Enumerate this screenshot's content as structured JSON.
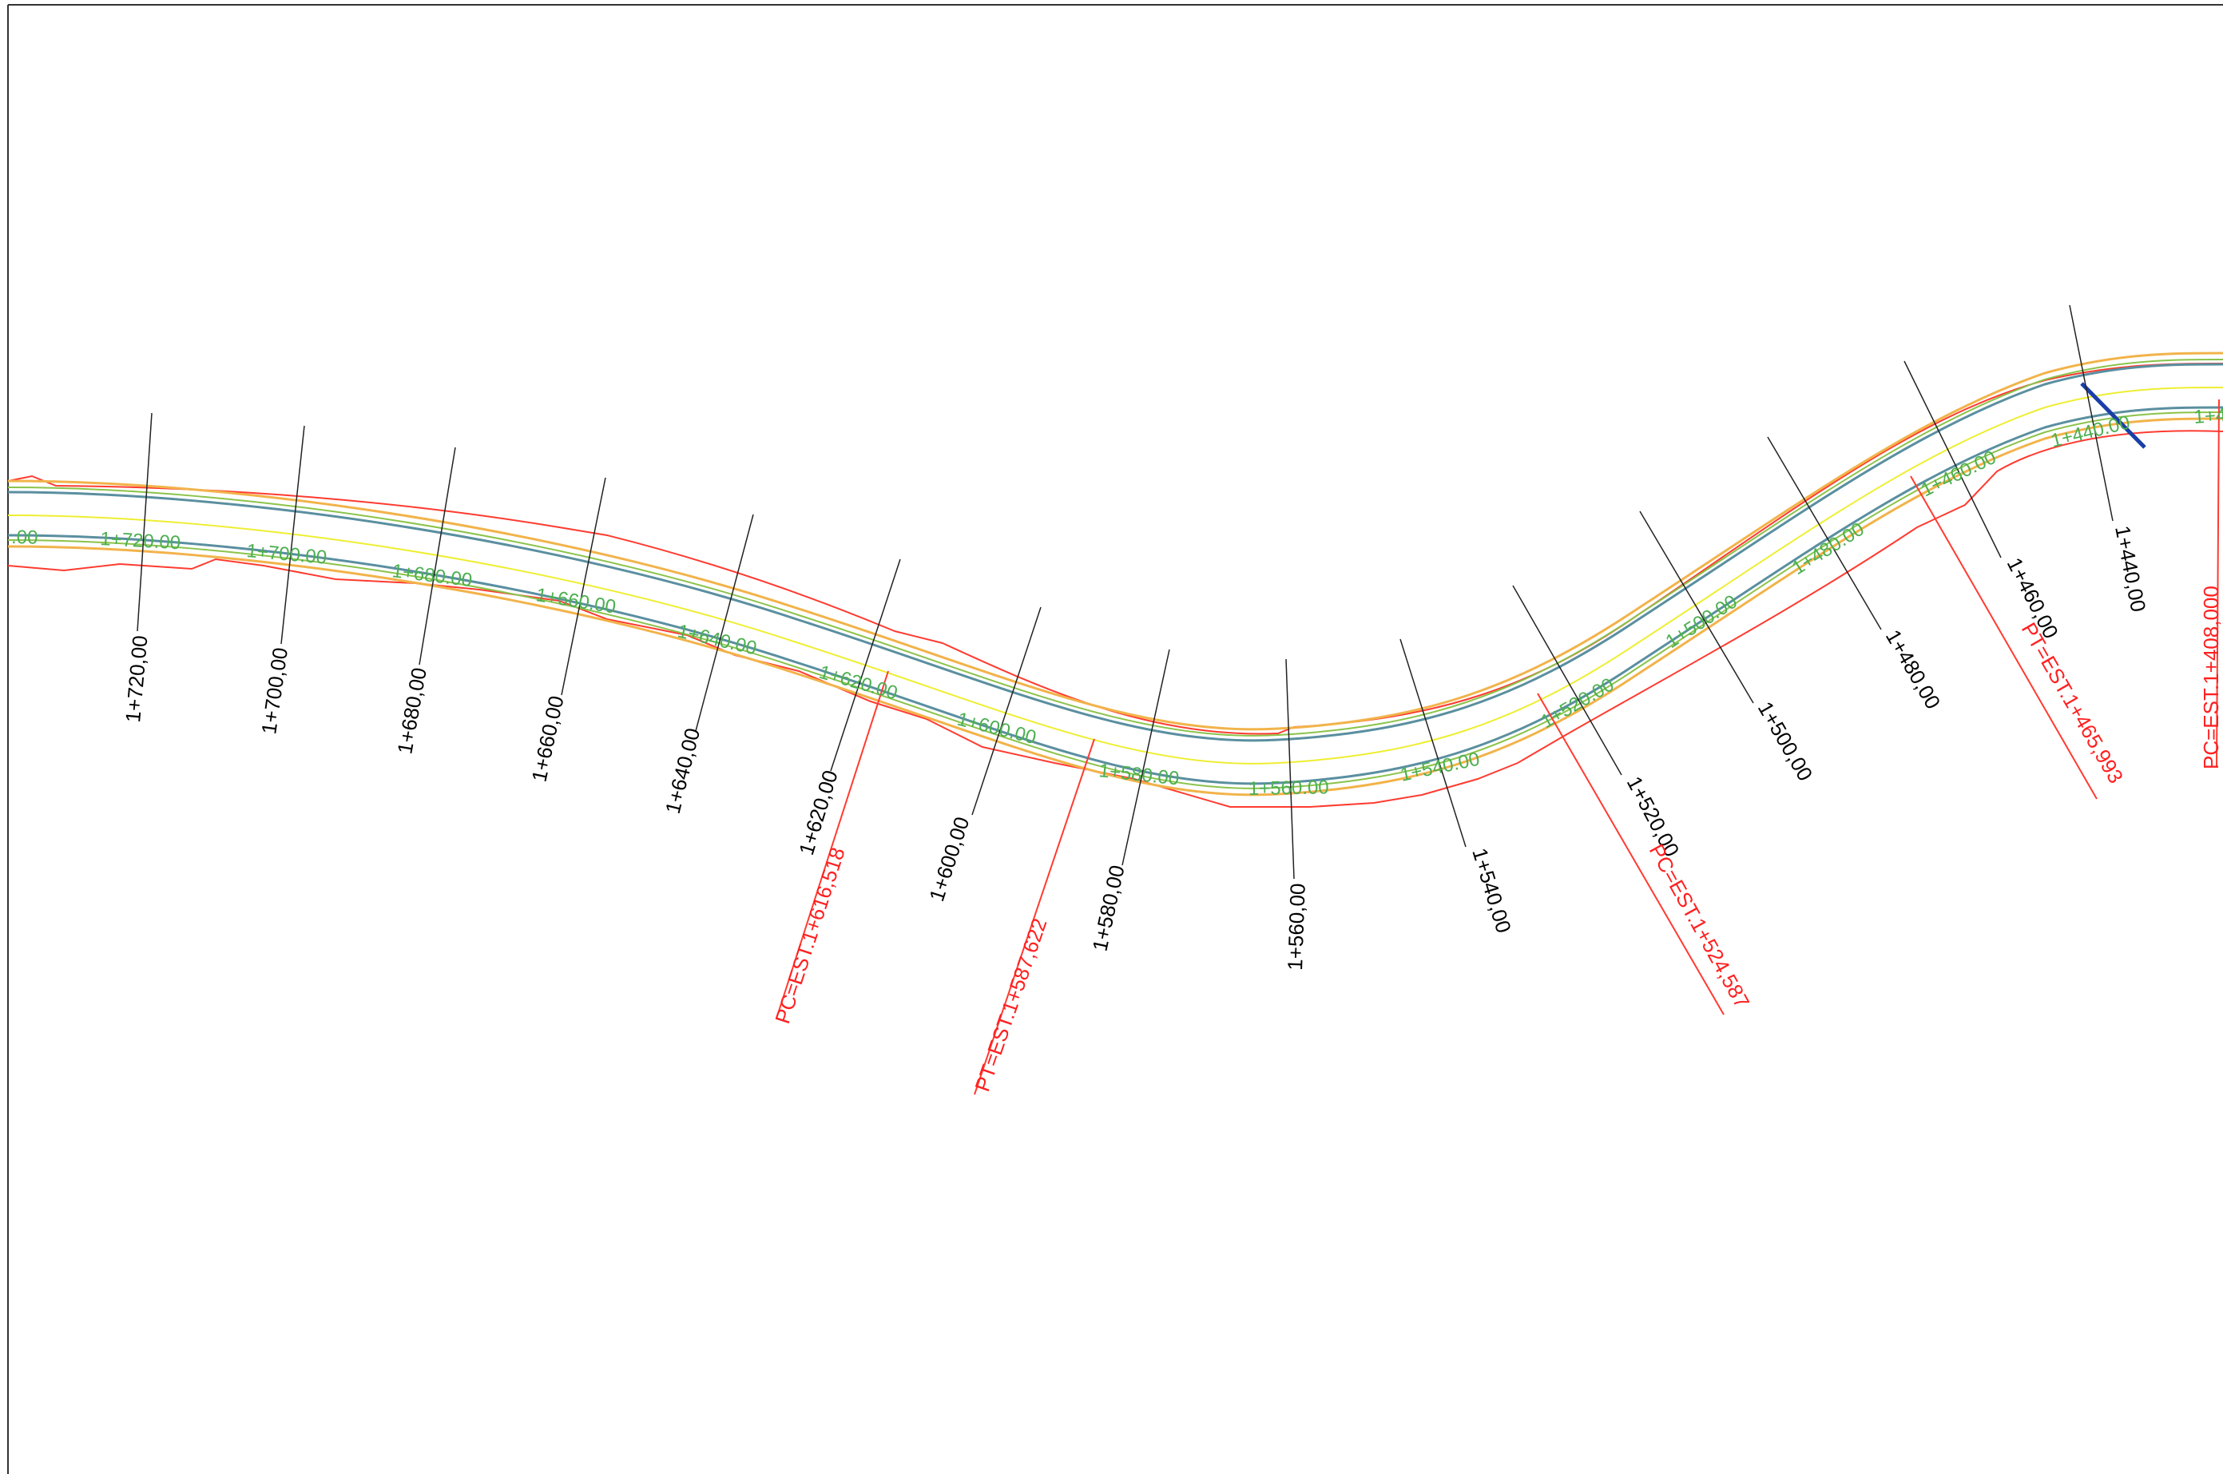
{
  "drawing": {
    "colors": {
      "border": "#333333",
      "terrain_edge": "#ff3b30",
      "shoulder": "#f2b34a",
      "lane_edge": "#8bc34a",
      "pavement_edge": "#5a8fa0",
      "centerline": "#eeee33",
      "station_label": "#4caf50",
      "cross_section": "#222222",
      "curve_point": "#ff2020",
      "marker": "#1a3fa8"
    },
    "cross_sections": [
      {
        "label": "1+720,00"
      },
      {
        "label": "1+700,00"
      },
      {
        "label": "1+680,00"
      },
      {
        "label": "1+660,00"
      },
      {
        "label": "1+640,00"
      },
      {
        "label": "1+620,00"
      },
      {
        "label": "1+600,00"
      },
      {
        "label": "1+580,00"
      },
      {
        "label": "1+560,00"
      },
      {
        "label": "1+540,00"
      },
      {
        "label": "1+520,00"
      },
      {
        "label": "1+500,00"
      },
      {
        "label": "1+480,00"
      },
      {
        "label": "1+460,00"
      },
      {
        "label": "1+440,00"
      }
    ],
    "stations": [
      {
        "label": ".00"
      },
      {
        "label": "1+720.00"
      },
      {
        "label": "1+700.00"
      },
      {
        "label": "1+680.00"
      },
      {
        "label": "1+660.00"
      },
      {
        "label": "1+640.00"
      },
      {
        "label": "1+620.00"
      },
      {
        "label": "1+600.00"
      },
      {
        "label": "1+580.00"
      },
      {
        "label": "1+560.00"
      },
      {
        "label": "1+540.00"
      },
      {
        "label": "1+520.00"
      },
      {
        "label": "1+500.00"
      },
      {
        "label": "1+480.00"
      },
      {
        "label": "1+460.00"
      },
      {
        "label": "1+440.00"
      },
      {
        "label": "1+4"
      }
    ],
    "curve_points": [
      {
        "label": "PC=EST.1+616,518"
      },
      {
        "label": "PT=EST.1+587,622"
      },
      {
        "label": "PC=EST.1+524,587"
      },
      {
        "label": "PT=EST.1+465,993"
      },
      {
        "label": "PC=EST.1+408,000"
      }
    ]
  }
}
